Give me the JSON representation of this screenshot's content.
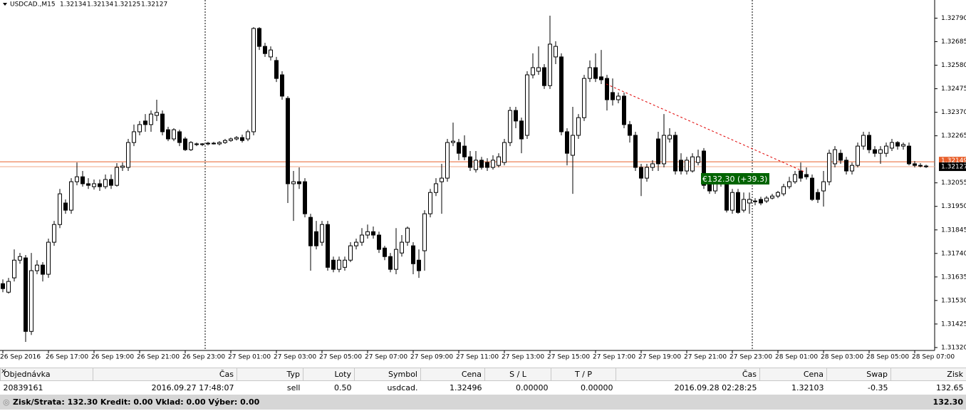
{
  "chart_data": {
    "type": "candlestick",
    "title": "USDCAD.,M15",
    "quote": [
      1.32134,
      1.32134,
      1.32125,
      1.32127
    ],
    "ylim": [
      1.31307,
      1.32871
    ],
    "yticks": [
      {
        "value": 1.3279,
        "label": "1.32790"
      },
      1.32685,
      {
        "value": 1.3258,
        "label": "1.32580"
      },
      1.32475,
      {
        "value": 1.3237,
        "label": "1.32370"
      },
      1.32265,
      1.32055,
      {
        "value": 1.3195,
        "label": "1.31950"
      },
      1.31845,
      {
        "value": 1.3174,
        "label": "1.31740"
      },
      1.31635,
      {
        "value": 1.3153,
        "label": "1.31530"
      },
      1.31425,
      {
        "value": 1.3132,
        "label": "1.31320"
      }
    ],
    "grid": false,
    "up_color": "#ffffff",
    "down_color": "#000000",
    "wick_color": "#000000",
    "ask": 1.32149,
    "ask_label": "1.32149",
    "bid": 1.32127,
    "bid_label": "1.32127",
    "trade": {
      "open_price": 1.32496,
      "close_price": 1.32103,
      "label": "€132.30 (+39.3)"
    },
    "categories": [
      "26 Sep 2016",
      null,
      null,
      null,
      null,
      null,
      null,
      null,
      "26 Sep 17:00",
      null,
      null,
      null,
      null,
      null,
      null,
      null,
      "26 Sep 19:00",
      null,
      null,
      null,
      null,
      null,
      null,
      null,
      "26 Sep 21:00",
      null,
      null,
      null,
      null,
      null,
      null,
      null,
      "26 Sep 23:00",
      null,
      null,
      null,
      null,
      null,
      null,
      null,
      "27 Sep 01:00",
      null,
      null,
      null,
      null,
      null,
      null,
      null,
      "27 Sep 03:00",
      null,
      null,
      null,
      null,
      null,
      null,
      null,
      "27 Sep 05:00",
      null,
      null,
      null,
      null,
      null,
      null,
      null,
      "27 Sep 07:00",
      null,
      null,
      null,
      null,
      null,
      null,
      null,
      "27 Sep 09:00",
      null,
      null,
      null,
      null,
      null,
      null,
      null,
      "27 Sep 11:00",
      null,
      null,
      null,
      null,
      null,
      null,
      null,
      "27 Sep 13:00",
      null,
      null,
      null,
      null,
      null,
      null,
      null,
      "27 Sep 15:00",
      null,
      null,
      null,
      null,
      null,
      null,
      null,
      "27 Sep 17:00",
      null,
      null,
      null,
      null,
      null,
      null,
      null,
      "27 Sep 19:00",
      null,
      null,
      null,
      null,
      null,
      null,
      null,
      "27 Sep 21:00",
      null,
      null,
      null,
      null,
      null,
      null,
      null,
      "27 Sep 23:00",
      null,
      null,
      null,
      null,
      null,
      null,
      null,
      "28 Sep 01:00",
      null,
      null,
      null,
      null,
      null,
      null,
      null,
      "28 Sep 03:00",
      null,
      null,
      null,
      null,
      null,
      null,
      null,
      "28 Sep 05:00",
      null,
      null,
      null,
      null,
      null,
      null,
      null,
      "28 Sep 07:00",
      null,
      null
    ],
    "ohlc": [
      [
        1.31605,
        1.31624,
        1.31567,
        1.31583
      ],
      [
        1.31567,
        1.31631,
        1.31561,
        1.31615
      ],
      [
        1.31631,
        1.31758,
        1.31615,
        1.3171
      ],
      [
        1.3171,
        1.31742,
        1.31694,
        1.31726
      ],
      [
        1.3172,
        1.31733,
        1.31345,
        1.31392
      ],
      [
        1.31392,
        1.31742,
        1.31376,
        1.31663
      ],
      [
        1.31663,
        1.3171,
        1.31647,
        1.31688
      ],
      [
        1.31688,
        1.31701,
        1.31615,
        1.31647
      ],
      [
        1.31647,
        1.31806,
        1.31631,
        1.3179
      ],
      [
        1.3179,
        1.31885,
        1.31774,
        1.31869
      ],
      [
        1.31869,
        1.32028,
        1.31853,
        1.32006
      ],
      [
        1.31965,
        1.31981,
        1.31917,
        1.31933
      ],
      [
        1.31933,
        1.32076,
        1.31917,
        1.3206
      ],
      [
        1.3206,
        1.32146,
        1.32044,
        1.32082
      ],
      [
        1.32082,
        1.32108,
        1.32038,
        1.32051
      ],
      [
        1.32051,
        1.32076,
        1.32028,
        1.32044
      ],
      [
        1.32038,
        1.3207,
        1.32025,
        1.32051
      ],
      [
        1.32051,
        1.3207,
        1.32019,
        1.32038
      ],
      [
        1.32038,
        1.32092,
        1.32028,
        1.3207
      ],
      [
        1.3207,
        1.32092,
        1.32028,
        1.32044
      ],
      [
        1.32044,
        1.32143,
        1.32038,
        1.32124
      ],
      [
        1.32124,
        1.32146,
        1.32108,
        1.3213
      ],
      [
        1.32124,
        1.32251,
        1.32108,
        1.32235
      ],
      [
        1.32235,
        1.32315,
        1.32219,
        1.32283
      ],
      [
        1.32283,
        1.32331,
        1.32267,
        1.32315
      ],
      [
        1.32331,
        1.32362,
        1.32283,
        1.32315
      ],
      [
        1.32315,
        1.32378,
        1.32283,
        1.32362
      ],
      [
        1.32356,
        1.32426,
        1.32331,
        1.32369
      ],
      [
        1.32362,
        1.32378,
        1.32267,
        1.32283
      ],
      [
        1.32292,
        1.32305,
        1.32241,
        1.32251
      ],
      [
        1.32251,
        1.32299,
        1.32241,
        1.32292
      ],
      [
        1.32283,
        1.32292,
        1.32219,
        1.32235
      ],
      [
        1.32251,
        1.3226,
        1.32197,
        1.32203
      ],
      [
        1.32203,
        1.32241,
        1.32197,
        1.32235
      ],
      [
        1.32229,
        1.32235,
        1.32219,
        1.32226
      ],
      [
        1.32226,
        1.32232,
        1.32219,
        1.32229
      ],
      [
        1.32229,
        1.32238,
        1.32222,
        1.32232
      ],
      [
        1.32232,
        1.32238,
        1.32226,
        1.32229
      ],
      [
        1.32229,
        1.32241,
        1.32222,
        1.32235
      ],
      [
        1.32235,
        1.32251,
        1.32229,
        1.32244
      ],
      [
        1.32244,
        1.32257,
        1.32238,
        1.32251
      ],
      [
        1.32251,
        1.32264,
        1.32244,
        1.32257
      ],
      [
        1.32257,
        1.3227,
        1.32235,
        1.32244
      ],
      [
        1.32251,
        1.32292,
        1.32241,
        1.32283
      ],
      [
        1.32283,
        1.3275,
        1.32267,
        1.32744
      ],
      [
        1.32744,
        1.3275,
        1.32648,
        1.32664
      ],
      [
        1.32664,
        1.3268,
        1.32617,
        1.32632
      ],
      [
        1.32617,
        1.32664,
        1.32601,
        1.32648
      ],
      [
        1.32601,
        1.32617,
        1.32505,
        1.32521
      ],
      [
        1.32537,
        1.32553,
        1.32426,
        1.32442
      ],
      [
        1.32432,
        1.32442,
        1.31965,
        1.32051
      ],
      [
        1.32051,
        1.32108,
        1.31885,
        1.3206
      ],
      [
        1.3206,
        1.32124,
        1.32028,
        1.32051
      ],
      [
        1.3206,
        1.32076,
        1.31901,
        1.31917
      ],
      [
        1.31901,
        1.31917,
        1.31663,
        1.31774
      ],
      [
        1.31837,
        1.31885,
        1.31758,
        1.31774
      ],
      [
        1.3179,
        1.31885,
        1.31774,
        1.31869
      ],
      [
        1.31869,
        1.31885,
        1.31663,
        1.31678
      ],
      [
        1.3171,
        1.31726,
        1.31656,
        1.31669
      ],
      [
        1.31669,
        1.31726,
        1.31656,
        1.3171
      ],
      [
        1.31678,
        1.31726,
        1.31663,
        1.3171
      ],
      [
        1.3171,
        1.3179,
        1.31701,
        1.31774
      ],
      [
        1.31774,
        1.31806,
        1.31758,
        1.3179
      ],
      [
        1.3179,
        1.31853,
        1.31774,
        1.31822
      ],
      [
        1.31822,
        1.31869,
        1.31806,
        1.31837
      ],
      [
        1.31837,
        1.3186,
        1.31806,
        1.31822
      ],
      [
        1.31822,
        1.31837,
        1.31742,
        1.31758
      ],
      [
        1.31764,
        1.31774,
        1.3171,
        1.31726
      ],
      [
        1.31726,
        1.31742,
        1.31656,
        1.31669
      ],
      [
        1.31669,
        1.31853,
        1.31647,
        1.31758
      ],
      [
        1.31742,
        1.31822,
        1.31726,
        1.3179
      ],
      [
        1.3179,
        1.3186,
        1.31774,
        1.31853
      ],
      [
        1.31774,
        1.3179,
        1.31647,
        1.31694
      ],
      [
        1.3171,
        1.31758,
        1.31631,
        1.31663
      ],
      [
        1.31752,
        1.31933,
        1.31663,
        1.31917
      ],
      [
        1.31917,
        1.32028,
        1.31901,
        1.32012
      ],
      [
        1.32012,
        1.32076,
        1.31996,
        1.32051
      ],
      [
        1.3206,
        1.3214,
        1.31917,
        1.32076
      ],
      [
        1.32076,
        1.32251,
        1.3206,
        1.32235
      ],
      [
        1.32235,
        1.32324,
        1.32219,
        1.32241
      ],
      [
        1.32235,
        1.32251,
        1.32156,
        1.32187
      ],
      [
        1.32219,
        1.32267,
        1.32156,
        1.32171
      ],
      [
        1.32171,
        1.32197,
        1.32108,
        1.32124
      ],
      [
        1.32114,
        1.32197,
        1.32101,
        1.32156
      ],
      [
        1.32156,
        1.32171,
        1.32114,
        1.32124
      ],
      [
        1.32146,
        1.32165,
        1.32108,
        1.32124
      ],
      [
        1.32124,
        1.32178,
        1.32114,
        1.32156
      ],
      [
        1.32133,
        1.32187,
        1.32124,
        1.32171
      ],
      [
        1.32146,
        1.32251,
        1.32133,
        1.32235
      ],
      [
        1.32235,
        1.32394,
        1.32219,
        1.32378
      ],
      [
        1.32378,
        1.32394,
        1.32299,
        1.32331
      ],
      [
        1.32331,
        1.32346,
        1.32187,
        1.32251
      ],
      [
        1.32267,
        1.32553,
        1.32251,
        1.32537
      ],
      [
        1.32537,
        1.32633,
        1.32521,
        1.32569
      ],
      [
        1.32553,
        1.32664,
        1.32537,
        1.32569
      ],
      [
        1.32569,
        1.32585,
        1.32474,
        1.32489
      ],
      [
        1.32489,
        1.32801,
        1.32474,
        1.32674
      ],
      [
        1.32617,
        1.32687,
        1.32585,
        1.32664
      ],
      [
        1.32617,
        1.32633,
        1.32267,
        1.32283
      ],
      [
        1.32283,
        1.32299,
        1.32133,
        1.32187
      ],
      [
        1.32178,
        1.32394,
        1.32006,
        1.32267
      ],
      [
        1.32267,
        1.32362,
        1.32251,
        1.32346
      ],
      [
        1.32346,
        1.32537,
        1.32331,
        1.32521
      ],
      [
        1.32521,
        1.32601,
        1.32505,
        1.32569
      ],
      [
        1.32569,
        1.32633,
        1.32505,
        1.32521
      ],
      [
        1.32528,
        1.32648,
        1.32496,
        1.32515
      ],
      [
        1.32521,
        1.32537,
        1.32378,
        1.32426
      ],
      [
        1.32458,
        1.32521,
        1.324,
        1.32426
      ],
      [
        1.32426,
        1.32458,
        1.3241,
        1.32442
      ],
      [
        1.32442,
        1.32458,
        1.32299,
        1.32315
      ],
      [
        1.32315,
        1.32331,
        1.32235,
        1.32267
      ],
      [
        1.32267,
        1.32283,
        1.32108,
        1.32124
      ],
      [
        1.32124,
        1.3214,
        1.31996,
        1.32076
      ],
      [
        1.32076,
        1.3214,
        1.3206,
        1.32124
      ],
      [
        1.32124,
        1.32156,
        1.32108,
        1.3214
      ],
      [
        1.32251,
        1.32283,
        1.32108,
        1.3214
      ],
      [
        1.3214,
        1.32362,
        1.32124,
        1.32267
      ],
      [
        1.32251,
        1.32299,
        1.32235,
        1.32267
      ],
      [
        1.32267,
        1.32283,
        1.32092,
        1.32108
      ],
      [
        1.32156,
        1.32187,
        1.32092,
        1.32108
      ],
      [
        1.32108,
        1.32171,
        1.32092,
        1.32156
      ],
      [
        1.32108,
        1.32187,
        1.32101,
        1.32171
      ],
      [
        1.32146,
        1.32203,
        1.32133,
        1.32171
      ],
      [
        1.32197,
        1.3221,
        1.32028,
        1.32044
      ],
      [
        1.32051,
        1.32076,
        1.32006,
        1.32019
      ],
      [
        1.32019,
        1.32092,
        1.32006,
        1.32076
      ],
      [
        1.32051,
        1.32076,
        1.32038,
        1.3206
      ],
      [
        1.3206,
        1.32076,
        1.31923,
        1.31933
      ],
      [
        1.31933,
        1.32028,
        1.31917,
        1.32012
      ],
      [
        1.32012,
        1.32028,
        1.31917,
        1.31923
      ],
      [
        1.31933,
        1.32012,
        1.31923,
        1.31981
      ],
      [
        1.31965,
        1.32012,
        1.31917,
        1.31981
      ],
      [
        1.31971,
        1.31987,
        1.31955,
        1.31974
      ],
      [
        1.31981,
        1.31993,
        1.31955,
        1.31965
      ],
      [
        1.31974,
        1.31996,
        1.31965,
        1.31987
      ],
      [
        1.31987,
        1.32006,
        1.31981,
        1.31996
      ],
      [
        1.31996,
        1.32019,
        1.31987,
        1.32012
      ],
      [
        1.32006,
        1.32051,
        1.31996,
        1.32038
      ],
      [
        1.32038,
        1.32082,
        1.32028,
        1.3206
      ],
      [
        1.3206,
        1.32108,
        1.32051,
        1.32092
      ],
      [
        1.32108,
        1.32146,
        1.3206,
        1.32076
      ],
      [
        1.32092,
        1.32124,
        1.3207,
        1.32082
      ],
      [
        1.32076,
        1.32092,
        1.31974,
        1.31981
      ],
      [
        1.32012,
        1.32028,
        1.31965,
        1.31981
      ],
      [
        1.32019,
        1.32108,
        1.31949,
        1.3206
      ],
      [
        1.3206,
        1.32203,
        1.32044,
        1.32187
      ],
      [
        1.3214,
        1.32219,
        1.32124,
        1.32203
      ],
      [
        1.32187,
        1.32203,
        1.3214,
        1.32156
      ],
      [
        1.32156,
        1.32171,
        1.32092,
        1.32108
      ],
      [
        1.32108,
        1.32146,
        1.32092,
        1.32133
      ],
      [
        1.32133,
        1.32235,
        1.32124,
        1.32219
      ],
      [
        1.32219,
        1.32283,
        1.32203,
        1.32267
      ],
      [
        1.32267,
        1.32283,
        1.32187,
        1.32203
      ],
      [
        1.32203,
        1.32219,
        1.32171,
        1.32187
      ],
      [
        1.32187,
        1.32219,
        1.3214,
        1.32203
      ],
      [
        1.32187,
        1.32235,
        1.32171,
        1.32219
      ],
      [
        1.3221,
        1.32251,
        1.32197,
        1.32235
      ],
      [
        1.32235,
        1.32241,
        1.32203,
        1.32219
      ],
      [
        1.32219,
        1.32235,
        1.32203,
        1.32226
      ],
      [
        1.32219,
        1.32235,
        1.32133,
        1.3214
      ],
      [
        1.3214,
        1.32152,
        1.32124,
        1.32133
      ],
      [
        1.32133,
        1.32143,
        1.32124,
        1.3213
      ],
      [
        1.3213,
        1.32136,
        1.32121,
        1.32127
      ]
    ]
  },
  "table": {
    "header": [
      "Objednávka",
      "Čas",
      "Typ",
      "Loty",
      "Symbol",
      "Cena",
      "S / L",
      "T / P",
      "Čas",
      "Cena",
      "Swap",
      "Zisk"
    ],
    "rows": [
      [
        "20839161",
        "2016.09.27 17:48:07",
        "sell",
        "0.50",
        "usdcad.",
        "1.32496",
        "0.00000",
        "0.00000",
        "2016.09.28 02:28:25",
        "1.32103",
        "-0.35",
        "132.65"
      ]
    ],
    "footer": {
      "summary": "Zisk/Strata: 132.30  Kredit: 0.00  Vklad: 0.00  Výber: 0.00",
      "total": "132.30"
    }
  }
}
